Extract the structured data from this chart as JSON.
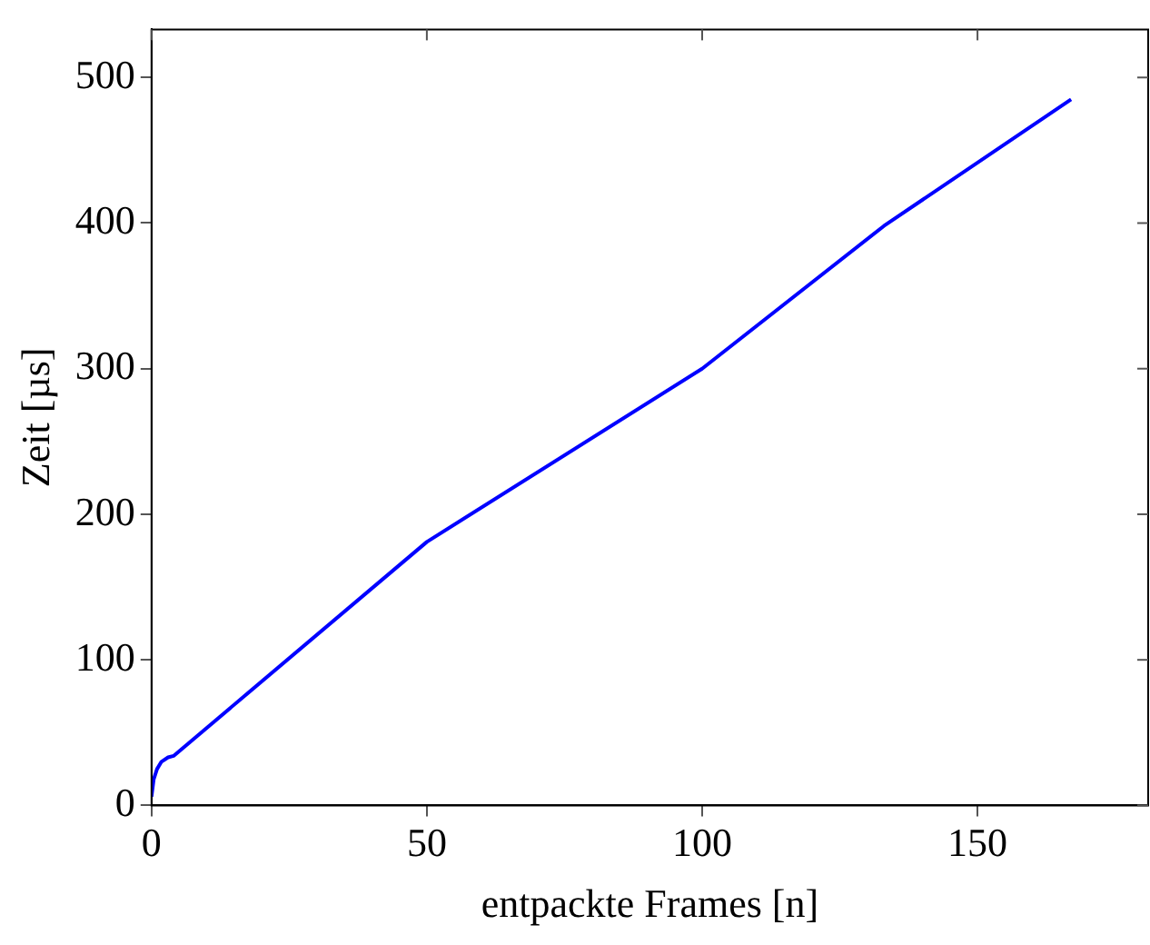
{
  "chart_data": {
    "type": "line",
    "xlabel": "entpackte Frames [n]",
    "ylabel": "Zeit [µs]",
    "x": [
      0,
      0.4,
      1,
      1.8,
      3,
      4,
      50,
      100,
      133,
      167
    ],
    "series": [
      {
        "color": "#0000ff",
        "values": [
          6,
          18,
          25,
          30,
          33,
          34,
          181,
          300,
          398,
          485
        ]
      }
    ],
    "xlim": [
      0,
      181
    ],
    "xticks": [
      0,
      50,
      100,
      150
    ],
    "ylim": [
      0,
      533
    ],
    "yticks": [
      0,
      100,
      200,
      300,
      400,
      500
    ],
    "grid": false,
    "legend": false,
    "marker": "none",
    "line_style": "solid"
  }
}
